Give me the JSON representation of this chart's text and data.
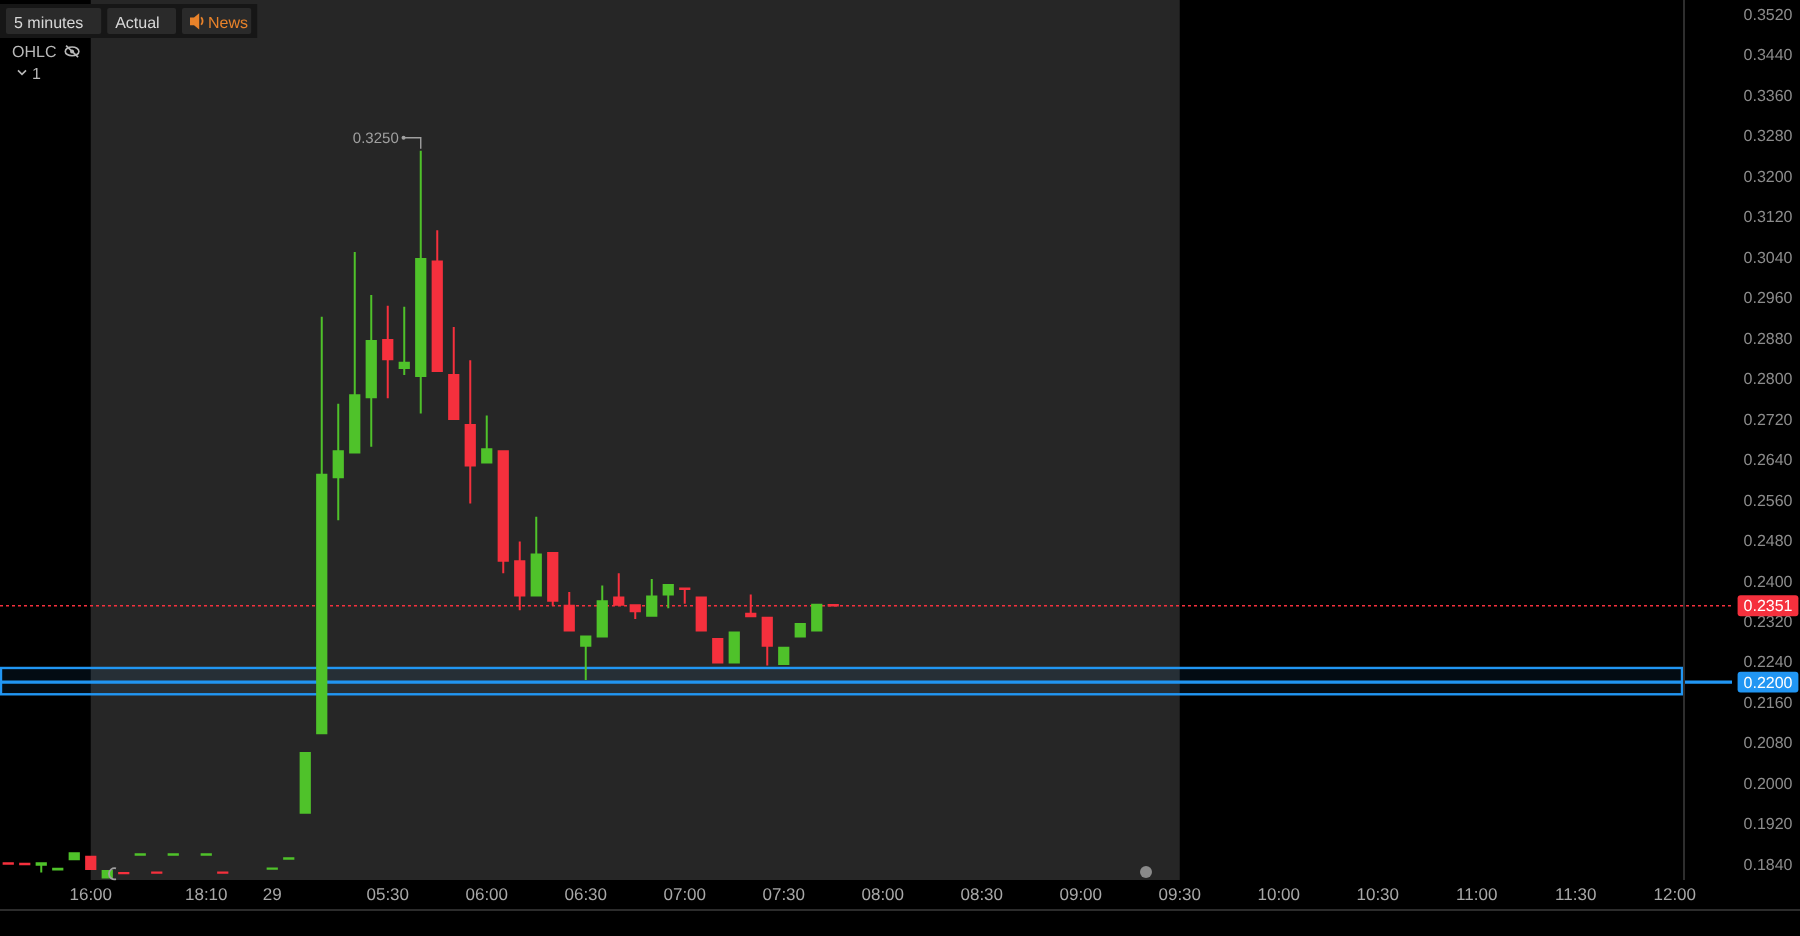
{
  "chart_data": {
    "type": "candlestick",
    "title": "5 minutes",
    "annotations": [
      "Actual",
      "News",
      "OHLC",
      "1",
      "0.3250"
    ],
    "categories": [
      null,
      null,
      null,
      null,
      null,
      "16:00",
      null,
      null,
      null,
      null,
      null,
      null,
      "18:10",
      null,
      null,
      null,
      "29",
      null,
      null,
      null,
      null,
      null,
      null,
      "05:30",
      null,
      null,
      null,
      null,
      null,
      "06:00",
      null,
      null,
      null,
      null,
      null,
      "06:30",
      null,
      null,
      null,
      null,
      null,
      "07:00",
      null,
      null,
      null,
      null,
      null,
      "07:30",
      null,
      null,
      null,
      null,
      null,
      "08:00",
      null,
      null,
      null,
      null,
      null,
      "08:30",
      null,
      null,
      null,
      null,
      null,
      "09:00",
      null,
      null,
      null,
      null,
      null,
      "09:30",
      null,
      null,
      null,
      null,
      null,
      "10:00",
      null,
      null,
      null,
      null,
      null,
      "10:30",
      null,
      null,
      null,
      null,
      null,
      "11:00",
      null,
      null,
      null,
      null,
      null,
      "11:30",
      null,
      null,
      null,
      null,
      null,
      "12:00"
    ],
    "ohlc": [
      [
        0.1842,
        0.1842,
        0.1841,
        0.1841
      ],
      [
        0.1841,
        0.1841,
        0.184,
        0.184
      ],
      [
        0.1837,
        0.1844,
        0.1824,
        0.1844
      ],
      [
        0.1828,
        0.1833,
        0.1828,
        0.1833
      ],
      [
        0.1848,
        0.1864,
        0.1848,
        0.1864
      ],
      [
        0.1857,
        0.1857,
        0.1829,
        0.1829
      ],
      [
        0.1812,
        0.1829,
        0.1812,
        0.1829
      ],
      [
        0.1823,
        0.1823,
        0.1822,
        0.1822
      ],
      [
        0.1859,
        0.186,
        0.1859,
        0.186
      ],
      [
        0.1824,
        0.1824,
        0.1823,
        0.1823
      ],
      [
        0.1859,
        0.186,
        0.1859,
        0.186
      ],
      null,
      [
        0.1859,
        0.186,
        0.1859,
        0.186
      ],
      [
        0.1824,
        0.1824,
        0.1823,
        0.1823
      ],
      null,
      null,
      [
        0.1831,
        0.1832,
        0.1831,
        0.1832
      ],
      [
        0.1851,
        0.1852,
        0.1851,
        0.1852
      ],
      [
        0.194,
        0.2062,
        0.194,
        0.2062
      ],
      [
        0.2097,
        0.2922,
        0.2097,
        0.2612
      ],
      [
        0.2603,
        0.275,
        0.252,
        0.2658
      ],
      [
        0.2652,
        0.305,
        0.2652,
        0.2769
      ],
      [
        0.2761,
        0.2965,
        0.2665,
        0.2876
      ],
      [
        0.2878,
        0.2944,
        0.2761,
        0.2836
      ],
      [
        0.2819,
        0.2942,
        0.2807,
        0.2833
      ],
      [
        0.2803,
        0.325,
        0.2731,
        0.3038
      ],
      [
        0.3033,
        0.3093,
        0.2813,
        0.2813
      ],
      [
        0.2809,
        0.2902,
        0.2718,
        0.2718
      ],
      [
        0.271,
        0.2836,
        0.2553,
        0.2626
      ],
      [
        0.2632,
        0.2727,
        0.2632,
        0.2662
      ],
      [
        0.2658,
        0.2658,
        0.2415,
        0.2438
      ],
      [
        0.2441,
        0.2478,
        0.2342,
        0.2369
      ],
      [
        0.2369,
        0.2527,
        0.2369,
        0.2454
      ],
      [
        0.2457,
        0.2457,
        0.2351,
        0.2359
      ],
      [
        0.2353,
        0.2378,
        0.23,
        0.23
      ],
      [
        0.227,
        0.2292,
        0.2204,
        0.2292
      ],
      [
        0.2288,
        0.2391,
        0.2288,
        0.2362
      ],
      [
        0.2369,
        0.2415,
        0.2351,
        0.2351
      ],
      [
        0.2354,
        0.2354,
        0.2325,
        0.2338
      ],
      [
        0.2329,
        0.2404,
        0.2329,
        0.2371
      ],
      [
        0.2371,
        0.2394,
        0.2346,
        0.2394
      ],
      [
        0.2387,
        0.2387,
        0.2355,
        0.2382
      ],
      [
        0.2369,
        0.2369,
        0.23,
        0.23
      ],
      [
        0.2287,
        0.2287,
        0.2237,
        0.2237
      ],
      [
        0.2237,
        0.23,
        0.2237,
        0.23
      ],
      [
        0.2337,
        0.2373,
        0.2328,
        0.2328
      ],
      [
        0.2329,
        0.2329,
        0.2233,
        0.227
      ],
      [
        0.2234,
        0.227,
        0.2234,
        0.227
      ],
      [
        0.2288,
        0.2317,
        0.2288,
        0.2317
      ],
      [
        0.23,
        0.2355,
        0.23,
        0.2355
      ],
      [
        0.2353,
        0.2353,
        0.2351,
        0.2351
      ],
      null,
      null,
      null,
      null,
      null,
      null,
      null,
      null,
      null,
      null,
      null,
      null,
      null,
      null,
      null,
      null,
      null,
      null,
      null,
      null,
      null,
      null,
      null,
      null,
      null,
      null,
      null,
      null,
      null,
      null,
      null,
      null,
      null,
      null,
      null,
      null,
      null,
      null,
      null,
      null,
      null,
      null,
      null,
      null,
      null,
      null,
      null,
      null,
      null,
      null,
      null
    ],
    "colors": [
      "#f5303d",
      "#f5303d",
      "#4fc22a",
      "#4fc22a",
      "#4fc22a",
      "#f5303d",
      "#4fc22a",
      "#f5303d",
      "#4fc22a",
      "#f5303d",
      "#4fc22a",
      null,
      "#4fc22a",
      "#f5303d",
      null,
      null,
      "#4fc22a",
      "#4fc22a",
      "#4fc22a",
      "#4fc22a",
      "#4fc22a",
      "#4fc22a",
      "#4fc22a",
      "#f5303d",
      "#4fc22a",
      "#4fc22a",
      "#f5303d",
      "#f5303d",
      "#f5303d",
      "#4fc22a",
      "#f5303d",
      "#f5303d",
      "#4fc22a",
      "#f5303d",
      "#f5303d",
      "#4fc22a",
      "#4fc22a",
      "#f5303d",
      "#f5303d",
      "#4fc22a",
      "#4fc22a",
      "#f5303d",
      "#f5303d",
      "#f5303d",
      "#4fc22a",
      "#f5303d",
      "#f5303d",
      "#4fc22a",
      "#4fc22a",
      "#4fc22a",
      "#f5303d",
      null,
      null,
      null,
      null,
      null,
      null,
      null,
      null,
      null,
      null,
      null,
      null,
      null,
      null,
      null,
      null,
      null,
      null,
      null,
      null,
      null,
      null,
      null,
      null,
      null,
      null,
      null,
      null,
      null,
      null,
      null,
      null,
      null,
      null,
      null,
      null,
      null,
      null,
      null,
      null,
      null,
      null,
      null,
      null,
      null,
      null,
      null,
      null,
      null,
      null,
      null
    ],
    "ylim": [
      0.1809,
      0.3548
    ],
    "yticks": [
      {
        "value": 0.184,
        "label": "0.1840"
      },
      {
        "value": 0.192,
        "label": "0.1920"
      },
      {
        "value": 0.2,
        "label": "0.2000"
      },
      {
        "value": 0.208,
        "label": "0.2080"
      },
      {
        "value": 0.216,
        "label": "0.2160"
      },
      {
        "value": 0.224,
        "label": "0.2240"
      },
      {
        "value": 0.232,
        "label": "0.2320"
      },
      {
        "value": 0.24,
        "label": "0.2400"
      },
      {
        "value": 0.248,
        "label": "0.2480"
      },
      {
        "value": 0.256,
        "label": "0.2560"
      },
      {
        "value": 0.264,
        "label": "0.2640"
      },
      {
        "value": 0.272,
        "label": "0.2720"
      },
      {
        "value": 0.28,
        "label": "0.2800"
      },
      {
        "value": 0.288,
        "label": "0.2880"
      },
      {
        "value": 0.296,
        "label": "0.2960"
      },
      {
        "value": 0.304,
        "label": "0.3040"
      },
      {
        "value": 0.312,
        "label": "0.3120"
      },
      {
        "value": 0.32,
        "label": "0.3200"
      },
      {
        "value": 0.328,
        "label": "0.3280"
      },
      {
        "value": 0.336,
        "label": "0.3360"
      },
      {
        "value": 0.344,
        "label": "0.3440"
      },
      {
        "value": 0.352,
        "label": "0.3520"
      }
    ],
    "ref_lines": [
      {
        "axis": "y",
        "value": 0.2351,
        "label": "0.2351",
        "color": "#f5303d",
        "line_style": "dotted"
      },
      {
        "axis": "y",
        "value": 0.22,
        "label": "0.2200",
        "color": "#2196f3",
        "line_style": "solid"
      }
    ],
    "bands": [
      {
        "axis": "x",
        "from": "16:00",
        "to": "09:30",
        "color": "#262626"
      },
      {
        "axis": "y",
        "from": 0.2176,
        "to": 0.2228,
        "color": "#2196f3"
      }
    ]
  }
}
